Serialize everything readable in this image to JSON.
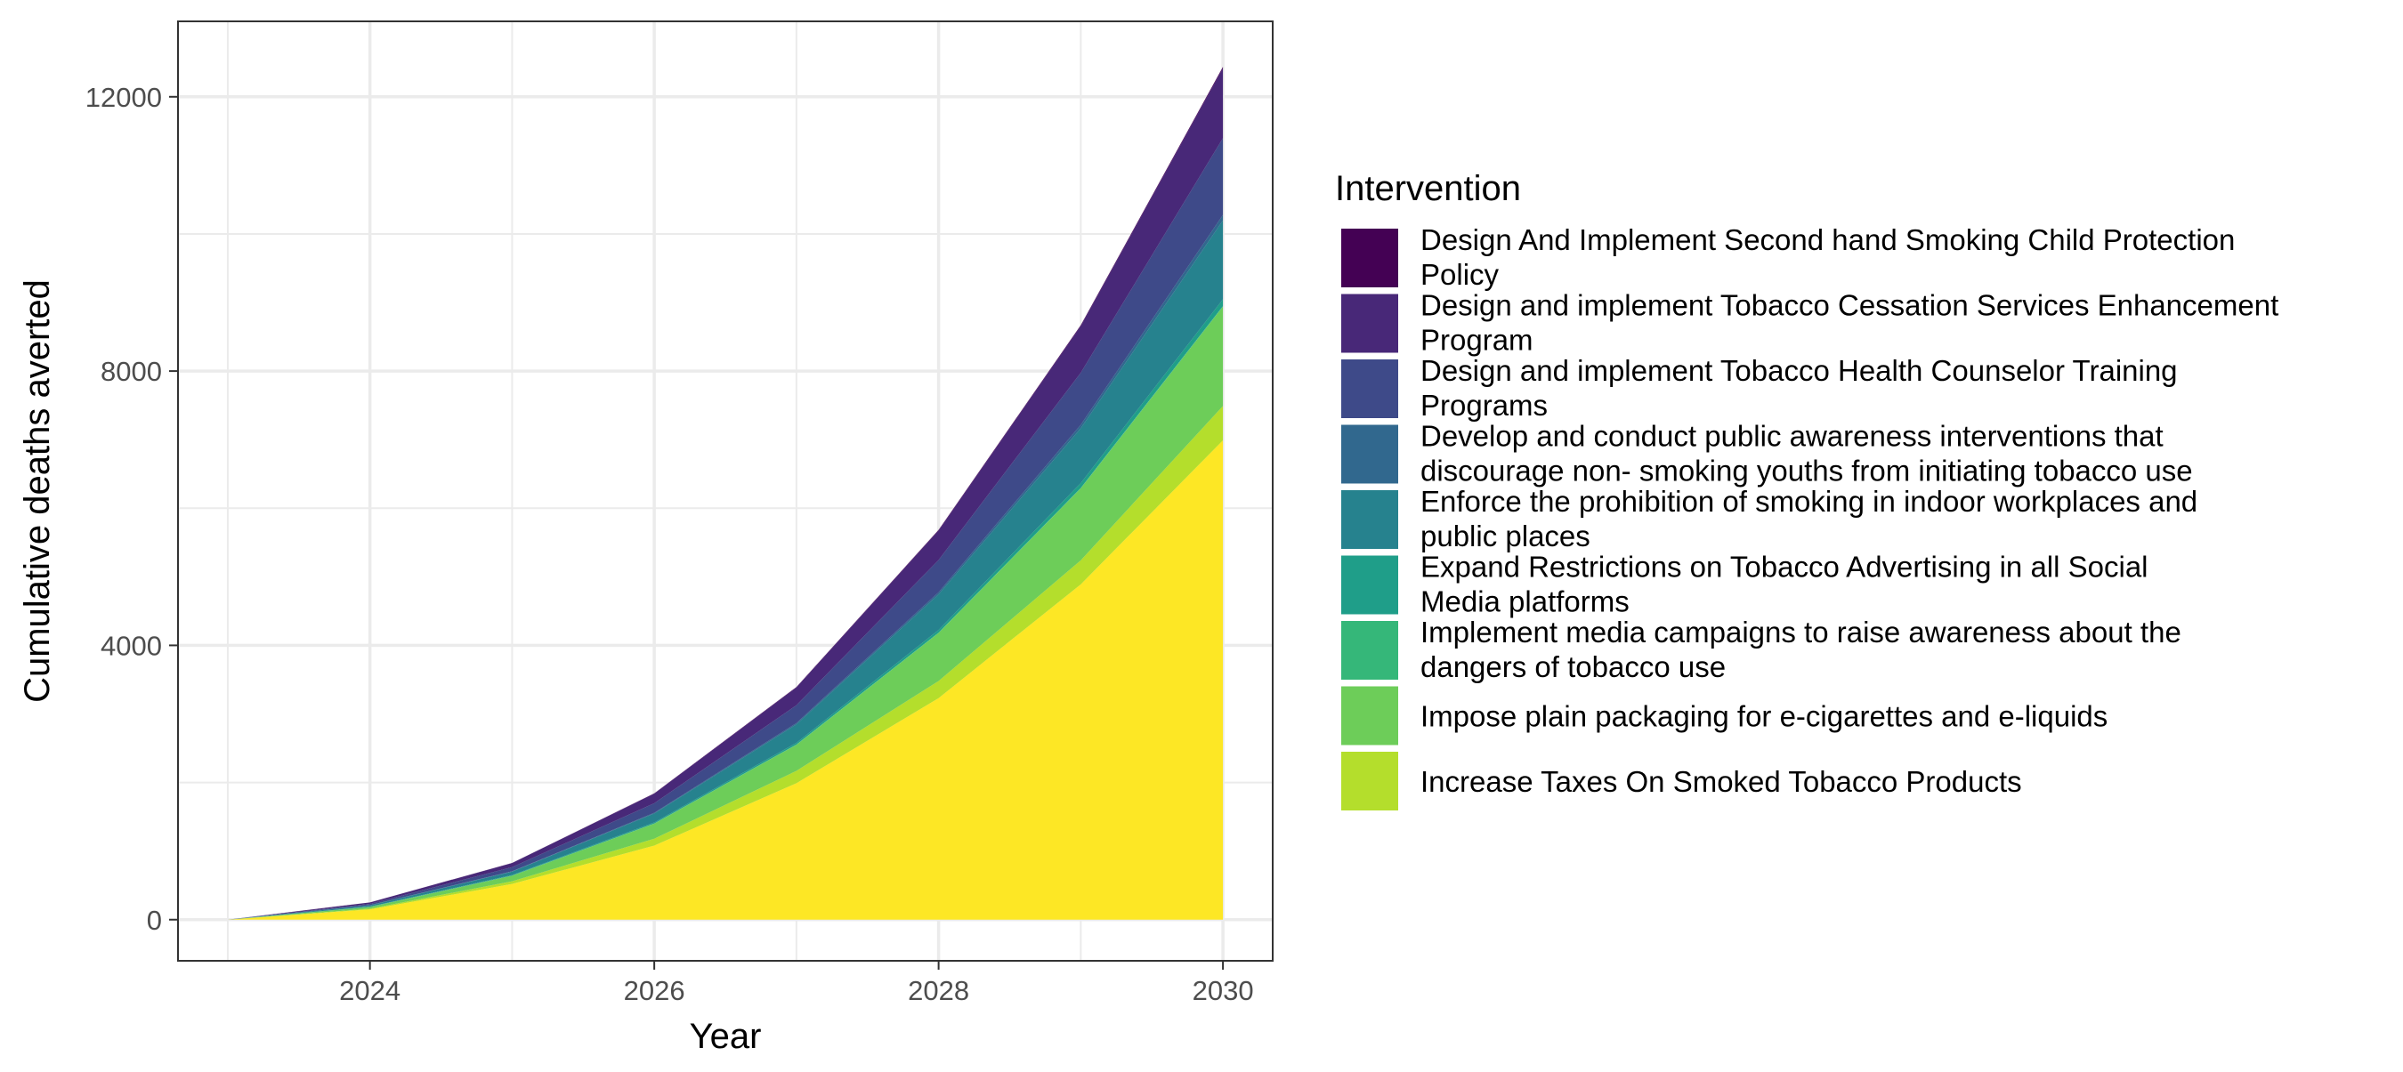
{
  "chart_data": {
    "type": "area",
    "stacked": true,
    "xlabel": "Year",
    "ylabel": "Cumulative deaths averted",
    "x": [
      2023,
      2024,
      2025,
      2026,
      2027,
      2028,
      2029,
      2030
    ],
    "xlim": [
      2022.65,
      2030.35
    ],
    "ylim": [
      -600,
      13100
    ],
    "x_ticks": [
      2024,
      2026,
      2028,
      2030
    ],
    "y_ticks": [
      0,
      4000,
      8000,
      12000
    ],
    "grid": true,
    "legend": {
      "title": "Intervention",
      "position": "right"
    },
    "series": [
      {
        "name": "Design And Implement Second hand Smoking Child Protection Policy",
        "label_lines": [
          "Design And Implement Second hand Smoking Child Protection",
          "Policy"
        ],
        "color": "#440154",
        "values": [
          0,
          1,
          2,
          4,
          6,
          9,
          13,
          18
        ]
      },
      {
        "name": "Design and implement Tobacco Cessation Services Enhancement Program",
        "label_lines": [
          "Design and implement Tobacco Cessation Services Enhancement",
          "Program"
        ],
        "color": "#482878",
        "values": [
          0,
          20,
          60,
          140,
          260,
          430,
          680,
          1020
        ]
      },
      {
        "name": "Design and implement Tobacco Health Counselor Training Programs",
        "label_lines": [
          "Design and implement Tobacco Health Counselor Training",
          "Programs"
        ],
        "color": "#3E4A89",
        "values": [
          0,
          20,
          60,
          140,
          260,
          470,
          760,
          1120
        ]
      },
      {
        "name": "Develop and conduct public awareness interventions that discourage non- smoking youths from initiating tobacco use",
        "label_lines": [
          "Develop and conduct public awareness interventions that",
          "discourage non- smoking youths from initiating tobacco use"
        ],
        "color": "#31688E",
        "values": [
          0,
          2,
          5,
          10,
          18,
          30,
          50,
          80
        ]
      },
      {
        "name": "Enforce the prohibition of smoking in indoor workplaces and public places",
        "label_lines": [
          "Enforce the prohibition of smoking in indoor workplaces and",
          "public places"
        ],
        "color": "#26828E",
        "values": [
          0,
          20,
          50,
          130,
          270,
          520,
          800,
          1150
        ]
      },
      {
        "name": "Expand Restrictions on Tobacco Advertising in all Social Media platforms",
        "label_lines": [
          "Expand Restrictions on Tobacco Advertising in all Social",
          "Media platforms"
        ],
        "color": "#1F9E89",
        "values": [
          0,
          3,
          8,
          15,
          25,
          40,
          70,
          100
        ]
      },
      {
        "name": "Implement media campaigns to raise awareness about the dangers of tobacco use",
        "label_lines": [
          "Implement media campaigns to raise awareness about the",
          "dangers of tobacco use"
        ],
        "color": "#35B779",
        "values": [
          0,
          1,
          2,
          3,
          4,
          5,
          6,
          8
        ]
      },
      {
        "name": "Impose plain packaging for e-cigarettes and e-liquids",
        "label_lines": [
          "Impose plain packaging for e-cigarettes and e-liquids"
        ],
        "color": "#6DCD59",
        "values": [
          0,
          25,
          80,
          220,
          380,
          700,
          1050,
          1450
        ]
      },
      {
        "name": "Increase Taxes On Smoked Tobacco Products",
        "label_lines": [
          "Increase Taxes On Smoked Tobacco Products"
        ],
        "color": "#B4DE2C",
        "values": [
          0,
          10,
          40,
          100,
          180,
          250,
          350,
          500
        ]
      },
      {
        "name": "Increase Taxes On Smoked Tobacco Products (base)",
        "legend": false,
        "color": "#FDE725",
        "values": [
          0,
          150,
          520,
          1080,
          1990,
          3230,
          4890,
          6990
        ]
      }
    ]
  }
}
